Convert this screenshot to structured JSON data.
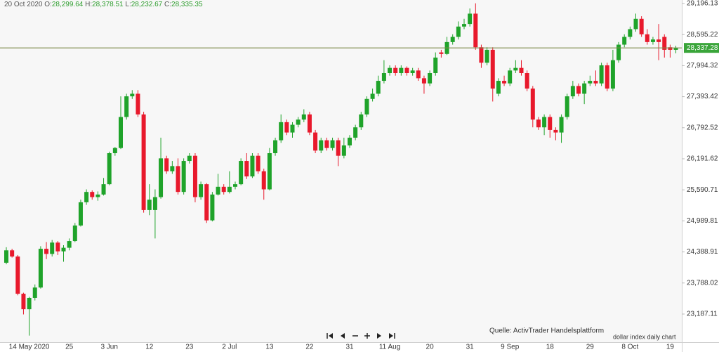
{
  "chart_data": {
    "type": "candlestick",
    "header": {
      "date": "20 Oct 2020",
      "open_label": "O:",
      "open": "28,299.64",
      "high_label": "H:",
      "high": "28,378.51",
      "low_label": "L:",
      "low": "28,232.67",
      "close_label": "C:",
      "close": "28,335.35"
    },
    "categories": [
      null,
      null,
      null,
      null,
      "14 May 2020",
      null,
      null,
      null,
      null,
      null,
      null,
      "25",
      null,
      null,
      null,
      null,
      null,
      null,
      "3 Jun",
      null,
      null,
      null,
      null,
      null,
      null,
      "12",
      null,
      null,
      null,
      null,
      null,
      null,
      "23",
      null,
      null,
      null,
      null,
      null,
      null,
      "2 Jul",
      null,
      null,
      null,
      null,
      null,
      null,
      "13",
      null,
      null,
      null,
      null,
      null,
      null,
      "22",
      null,
      null,
      null,
      null,
      null,
      null,
      "31",
      null,
      null,
      null,
      null,
      null,
      null,
      "11 Aug",
      null,
      null,
      null,
      null,
      null,
      null,
      "20",
      null,
      null,
      null,
      null,
      null,
      null,
      "31",
      null,
      null,
      null,
      null,
      null,
      null,
      "9 Sep",
      null,
      null,
      null,
      null,
      null,
      null,
      "18",
      null,
      null,
      null,
      null,
      null,
      null,
      "29",
      null,
      null,
      null,
      null,
      null,
      null,
      "8 Oct",
      null,
      null,
      null,
      null,
      null,
      null,
      "19",
      null
    ],
    "open": [
      24180,
      24420,
      24300,
      23580,
      23280,
      23500,
      23700,
      24450,
      24350,
      24570,
      24400,
      24470,
      24600,
      24900,
      25350,
      25550,
      25450,
      25500,
      25700,
      26300,
      26400,
      27000,
      27400,
      27450,
      27050,
      25200,
      25200,
      25450,
      26200,
      25950,
      26050,
      25550,
      26150,
      26250,
      25450,
      25700,
      25000,
      25500,
      25650,
      25550,
      25650,
      25700,
      26150,
      25850,
      26250,
      25950,
      25600,
      26300,
      26550,
      26900,
      26700,
      26850,
      26950,
      27050,
      26700,
      26350,
      26550,
      26400,
      26550,
      26250,
      26450,
      26600,
      26800,
      27050,
      27350,
      27450,
      27700,
      27850,
      27950,
      27850,
      27950,
      27850,
      27900,
      27750,
      27650,
      27850,
      28250,
      28220,
      28450,
      28550,
      28750,
      28800,
      29000,
      28350,
      28050,
      28300,
      27450,
      27700,
      27650,
      27900,
      27950,
      27850,
      27550,
      26950,
      26800,
      27000,
      26750,
      26700,
      27000,
      27400,
      27600,
      27450,
      27650,
      27700,
      27650,
      28000,
      27550,
      28100,
      28400,
      28550,
      28700,
      28900,
      28600,
      28450,
      28500,
      28550,
      28350,
      28299.64
    ],
    "high": [
      24480,
      24450,
      24330,
      23600,
      23520,
      23760,
      24500,
      24580,
      24620,
      24600,
      24520,
      24650,
      24950,
      25400,
      25600,
      25580,
      25560,
      25820,
      26330,
      26420,
      27400,
      27450,
      27520,
      27520,
      27100,
      25700,
      25600,
      26600,
      26250,
      26150,
      26200,
      26200,
      26300,
      26300,
      25750,
      25720,
      25550,
      25900,
      25700,
      25950,
      25750,
      26200,
      26300,
      26300,
      26300,
      26000,
      26400,
      26600,
      27050,
      26950,
      26900,
      27000,
      27150,
      27100,
      26750,
      26600,
      26600,
      26600,
      26600,
      26600,
      26650,
      26850,
      27100,
      27400,
      27550,
      27800,
      28100,
      28000,
      28000,
      28000,
      27980,
      27950,
      27950,
      27800,
      27900,
      28250,
      28300,
      28550,
      28600,
      28850,
      28900,
      29100,
      29200,
      28400,
      28350,
      28350,
      27750,
      27800,
      27950,
      28100,
      28100,
      27900,
      27600,
      27000,
      27050,
      27050,
      26800,
      27050,
      27450,
      27700,
      27650,
      27700,
      27800,
      27900,
      28050,
      28050,
      28300,
      28450,
      28600,
      28750,
      29000,
      28950,
      28700,
      28550,
      28800,
      28600,
      28400,
      28378.51
    ],
    "low": [
      24150,
      24280,
      23550,
      23180,
      22770,
      23450,
      23680,
      24250,
      24300,
      24330,
      24200,
      24420,
      24580,
      24880,
      25300,
      25400,
      25380,
      25480,
      25680,
      26250,
      26380,
      26950,
      27350,
      27000,
      25150,
      25100,
      24650,
      25420,
      25900,
      25900,
      25500,
      25500,
      26100,
      25350,
      25400,
      24950,
      24980,
      25480,
      25500,
      25520,
      25600,
      25680,
      25800,
      25820,
      25900,
      25400,
      25580,
      26250,
      26500,
      26650,
      26600,
      26800,
      26900,
      26650,
      26300,
      26300,
      26350,
      26350,
      26050,
      26200,
      26400,
      26550,
      26750,
      27000,
      27300,
      27400,
      27650,
      27800,
      27800,
      27800,
      27800,
      27800,
      27700,
      27450,
      27600,
      27800,
      28150,
      28200,
      28400,
      28500,
      28700,
      28750,
      28300,
      27950,
      28000,
      27300,
      27400,
      27600,
      27600,
      27850,
      27800,
      27500,
      26800,
      26750,
      26650,
      26600,
      26550,
      26500,
      26950,
      27350,
      27400,
      27250,
      27600,
      27600,
      27600,
      27500,
      27500,
      28050,
      28350,
      28500,
      28650,
      28550,
      28400,
      28400,
      28100,
      28150,
      28150,
      28232.67
    ],
    "close": [
      24420,
      24300,
      23580,
      23280,
      23500,
      23700,
      24450,
      24350,
      24570,
      24400,
      24470,
      24600,
      24900,
      25350,
      25550,
      25450,
      25500,
      25700,
      26300,
      26400,
      27000,
      27400,
      27450,
      27050,
      25200,
      25400,
      25450,
      26200,
      25950,
      26050,
      25550,
      26150,
      26250,
      25450,
      25700,
      25000,
      25500,
      25650,
      25550,
      25650,
      25700,
      26150,
      25850,
      26250,
      25950,
      25600,
      26300,
      26550,
      26900,
      26700,
      26850,
      26950,
      27050,
      26700,
      26350,
      26550,
      26400,
      26550,
      26250,
      26450,
      26600,
      26800,
      27050,
      27350,
      27450,
      27700,
      27850,
      27950,
      27850,
      27950,
      27850,
      27900,
      27750,
      27650,
      27850,
      28150,
      28220,
      28450,
      28550,
      28750,
      28800,
      29000,
      28350,
      28050,
      28300,
      27550,
      27700,
      27650,
      27900,
      27950,
      27850,
      27550,
      26950,
      26800,
      27000,
      26750,
      26700,
      27000,
      27400,
      27600,
      27450,
      27650,
      27700,
      27650,
      28000,
      27550,
      28100,
      28400,
      28550,
      28700,
      28900,
      28600,
      28450,
      28500,
      28450,
      28300,
      28300,
      28335.35
    ],
    "up_color": "#1fa32a",
    "down_color": "#e8192c",
    "ylim": [
      22643,
      29264
    ],
    "yticks": [
      {
        "value": 29196.13,
        "label": "29,196.13"
      },
      {
        "value": 28595.22,
        "label": "28,595.22"
      },
      {
        "value": 27994.32,
        "label": "27,994.32"
      },
      {
        "value": 27393.42,
        "label": "27,393.42"
      },
      {
        "value": 26792.52,
        "label": "26,792.52"
      },
      {
        "value": 26191.62,
        "label": "26,191.62"
      },
      {
        "value": 25590.71,
        "label": "25,590.71"
      },
      {
        "value": 24989.81,
        "label": "24,989.81"
      },
      {
        "value": 24388.91,
        "label": "24,388.91"
      },
      {
        "value": 23788.02,
        "label": "23,788.02"
      },
      {
        "value": 23187.11,
        "label": "23,187.11"
      }
    ],
    "last_price": {
      "value": 28337.28,
      "label": "28,337.28"
    },
    "last_price_color": "#3aa53a",
    "source": "Quelle: ActivTrader Handelsplattform",
    "caption": "dollar index daily chart"
  }
}
